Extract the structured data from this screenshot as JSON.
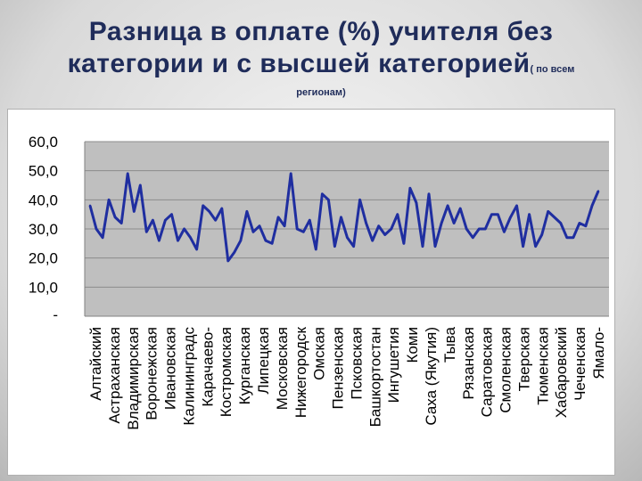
{
  "slide": {
    "title_line1": "Разница в оплате (%)  учителя  без",
    "title_line2": "категории и с высшей категорией",
    "title_small": "( по всем",
    "title_line3": "регионам)"
  },
  "chart_data": {
    "type": "line",
    "title": "",
    "xlabel": "",
    "ylabel": "",
    "ylim": [
      0,
      60
    ],
    "y_tick_labels": [
      "60,0",
      "50,0",
      "40,0",
      "30,0",
      "20,0",
      "10,0",
      "-"
    ],
    "x_tick_labels": [
      "Алтайский",
      "Астраханская",
      "Владимирская",
      "Воронежская",
      "Ивановская",
      "Калининградс",
      "Карачаево-",
      "Костромская",
      "Курганская",
      "Липецкая",
      "Московская",
      "Нижегородск",
      "Омская",
      "Пензенская",
      "Псковская",
      "Башкортостан",
      "Ингушетия",
      "Коми",
      "Саха (Якутия)",
      "Тыва",
      "Рязанская",
      "Саратовская",
      "Смоленская",
      "Тверская",
      "Тюменская",
      "Хабаровский",
      "Чеченская",
      "Ямало-"
    ],
    "grid": true,
    "legend": "none",
    "series_color": "#1f2ea0",
    "values": [
      38,
      30,
      27,
      40,
      34,
      32,
      49,
      36,
      45,
      29,
      33,
      26,
      33,
      35,
      26,
      30,
      27,
      23,
      38,
      36,
      33,
      37,
      19,
      22,
      26,
      36,
      29,
      31,
      26,
      25,
      34,
      31,
      49,
      30,
      29,
      33,
      23,
      42,
      40,
      24,
      34,
      27,
      24,
      40,
      32,
      26,
      31,
      28,
      30,
      35,
      25,
      44,
      39,
      24,
      42,
      24,
      32,
      38,
      32,
      37,
      30,
      27,
      30,
      30,
      35,
      35,
      29,
      34,
      38,
      24,
      35,
      24,
      28,
      36,
      34,
      32,
      27,
      27,
      32,
      31,
      38,
      43
    ]
  }
}
